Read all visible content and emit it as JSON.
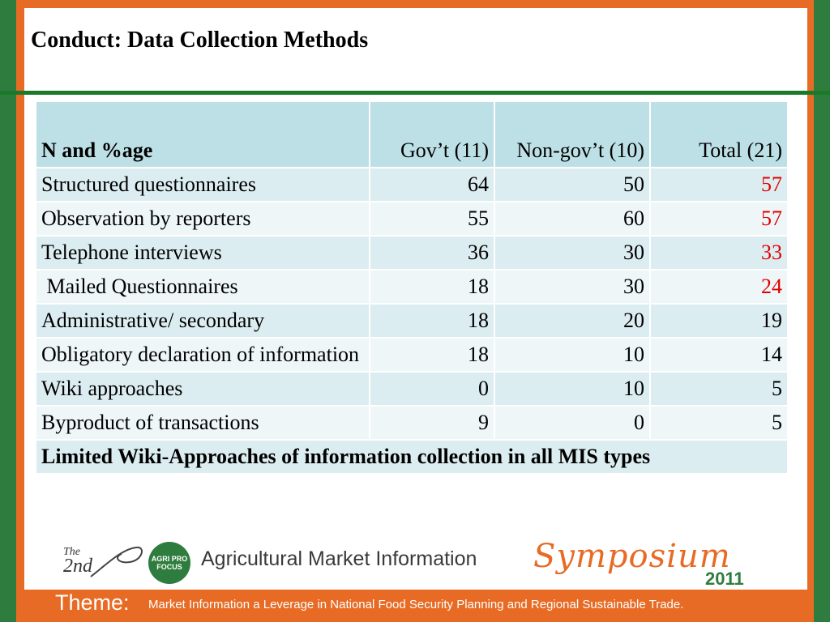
{
  "title": "Conduct: Data Collection Methods",
  "table": {
    "headers": [
      "N and %age",
      "Gov’t (11)",
      "Non-gov’t (10)",
      "Total (21)"
    ],
    "rows": [
      {
        "label": "Structured questionnaires",
        "gov": "64",
        "nongov": "50",
        "total": "57",
        "total_highlight": true
      },
      {
        "label": "Observation by reporters",
        "gov": "55",
        "nongov": "60",
        "total": "57",
        "total_highlight": true
      },
      {
        "label": "Telephone interviews",
        "gov": "36",
        "nongov": "30",
        "total": "33",
        "total_highlight": true
      },
      {
        "label": " Mailed Questionnaires",
        "gov": "18",
        "nongov": "30",
        "total": "24",
        "total_highlight": true
      },
      {
        "label": "Administrative/ secondary",
        "gov": "18",
        "nongov": "20",
        "total": "19",
        "total_highlight": false
      },
      {
        "label": "Obligatory declaration of information",
        "gov": "18",
        "nongov": "10",
        "total": "14",
        "total_highlight": false
      },
      {
        "label": "Wiki approaches",
        "gov": "0",
        "nongov": "10",
        "total": "5",
        "total_highlight": false
      },
      {
        "label": "Byproduct of transactions",
        "gov": "9",
        "nongov": "0",
        "total": "5",
        "total_highlight": false
      }
    ],
    "note": "Limited Wiki-Approaches of information collection in all MIS types"
  },
  "footer": {
    "the": "The",
    "nd": "2nd",
    "logo_text": "AGRI PRO FOCUS",
    "event": "Agricultural Market Information",
    "symposium": "Symposium",
    "year": "2011",
    "theme_label": "Theme:",
    "theme_text": "Market Information a Leverage in National Food Security Planning  and Regional Sustainable Trade."
  },
  "colors": {
    "orange": "#e86b25",
    "green": "#2e7d3e",
    "highlight_red": "#e10000"
  }
}
